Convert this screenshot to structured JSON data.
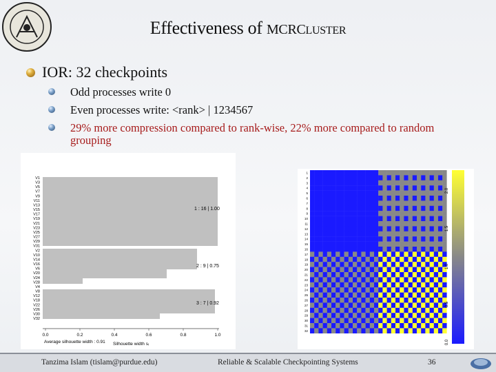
{
  "slide": {
    "title_main": "Effectiveness of ",
    "title_small_caps": "MCRC",
    "title_small_caps_rest": "LUSTER",
    "bullet": "IOR: 32 checkpoints",
    "subbullets": [
      "Odd processes write 0",
      "Even processes write: <rank> | 1234567",
      "29% more compression compared to rank-wise, 22% more compared to random grouping"
    ],
    "logo_text": "purdue university"
  },
  "footer": {
    "author": "Tanzima Islam (tislam@purdue.edu)",
    "center": "Reliable & Scalable Checkpointing Systems",
    "page": "36"
  },
  "silhouette": {
    "cluster_labels": [
      "1 :  16  |  1.00",
      "2 :  9  |  0.75",
      "3 :  7  |  0.92"
    ],
    "x_ticks": [
      "0.0",
      "0.2",
      "0.4",
      "0.6",
      "0.8",
      "1.0"
    ],
    "avg_label": "Average silhouette width :  0.91",
    "xlabel": "Silhouette width sᵢ",
    "row_labels": [
      "V1",
      "V3",
      "V5",
      "V7",
      "V9",
      "V11",
      "V13",
      "V15",
      "V17",
      "V19",
      "V21",
      "V23",
      "V25",
      "V27",
      "V29",
      "V31",
      "V2",
      "V10",
      "V14",
      "V16",
      "V6",
      "V20",
      "V24",
      "V28",
      "V4",
      "V8",
      "V12",
      "V18",
      "V22",
      "V26",
      "V30",
      "V32"
    ]
  },
  "heatmap": {
    "scale_ticks": [
      "2.0",
      "1.5",
      "1.0",
      "0.5",
      "0.0"
    ],
    "colors": {
      "low": "#1a1aff",
      "mid": "#888888",
      "high": "#ffff33"
    }
  }
}
